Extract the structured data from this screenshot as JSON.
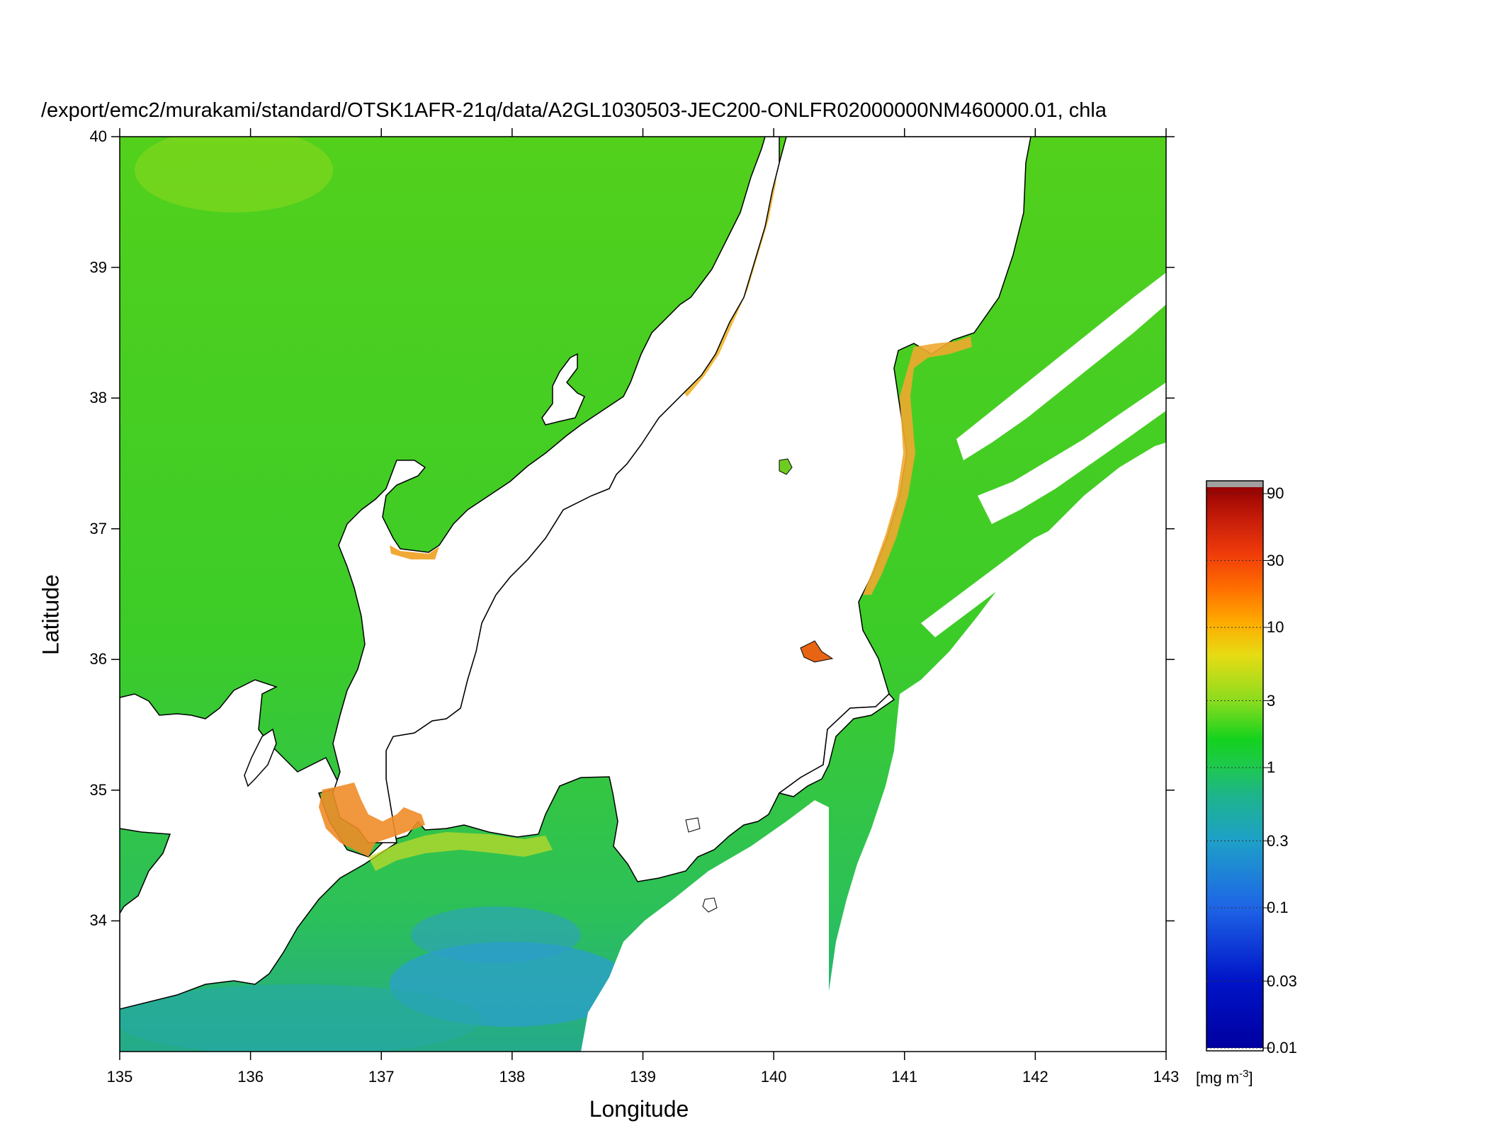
{
  "title": "/export/emc2/murakami/standard/OTSK1AFR-21q/data/A2GL1030503-JEC200-ONLFR02000000NM460000.01, chla",
  "x_axis": {
    "label": "Longitude",
    "range": [
      135,
      143
    ],
    "ticks": [
      "135",
      "136",
      "137",
      "138",
      "139",
      "140",
      "141",
      "142",
      "143"
    ]
  },
  "y_axis": {
    "label": "Latitude",
    "range": [
      33,
      40
    ],
    "ticks": [
      "34",
      "35",
      "36",
      "37",
      "38",
      "39",
      "40"
    ]
  },
  "colorbar": {
    "unit": "[mg m",
    "unit_sup": "-3",
    "unit_close": "]",
    "scale": "log",
    "range": [
      0.01,
      100
    ],
    "ticks": [
      "90",
      "30",
      "10",
      "3",
      "1",
      "0.3",
      "0.1",
      "0.03",
      "0.01"
    ],
    "colors": [
      "#0000b4",
      "#0a3cd2",
      "#1e78e6",
      "#1eb4b4",
      "#1ec864",
      "#14d214",
      "#78dc14",
      "#c8e61e",
      "#f0d200",
      "#ffa000",
      "#ff6400",
      "#e61e0a",
      "#a00000",
      "#8c0000"
    ]
  },
  "map": {
    "region": "Central Japan coast",
    "land_color": "#ffffff",
    "coastline_color": "#000000",
    "no_data_color": "#ffffff"
  }
}
